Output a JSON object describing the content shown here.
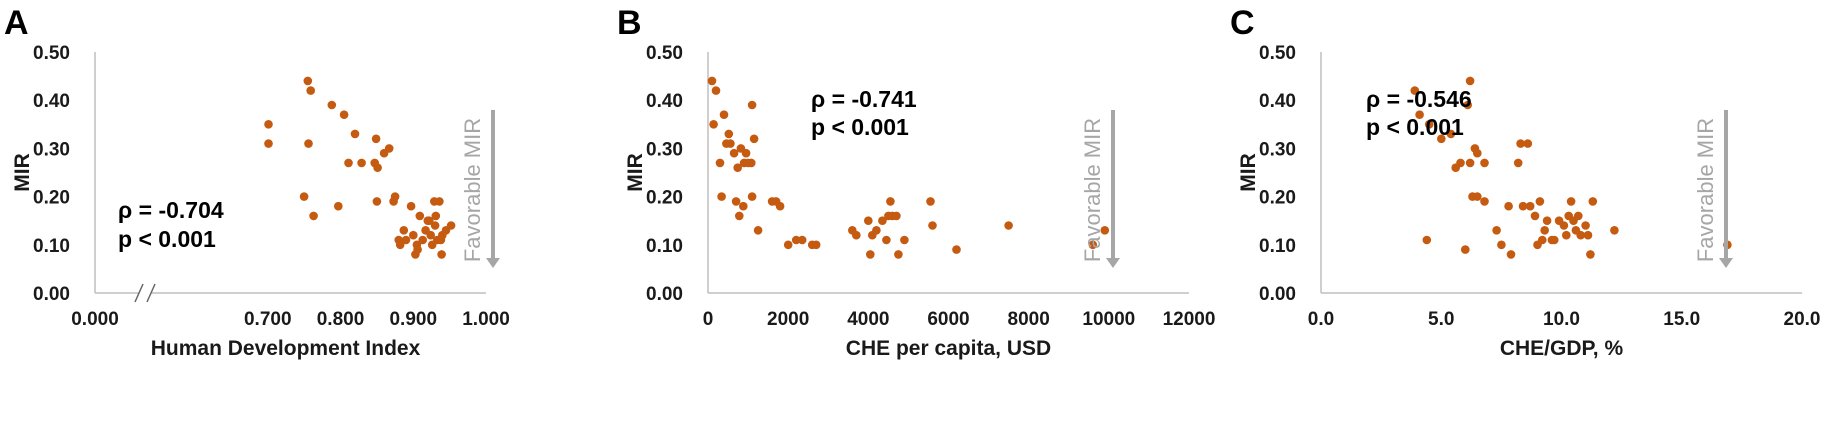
{
  "colors": {
    "point": "#c55a11",
    "axis": "#bfbfbf",
    "arrow": "#a6a6a6",
    "text": "#1a1a1a"
  },
  "chart_data": [
    {
      "type": "scatter",
      "panel_label": "A",
      "xlabel": "Human Development Index",
      "ylabel": "MIR",
      "xlim": [
        0.0,
        1.0
      ],
      "ylim": [
        0.0,
        0.5
      ],
      "axis_break": true,
      "break_after": 0.0,
      "break_start": 0.6,
      "x_ticks": [
        "0.000",
        "0.700",
        "0.800",
        "0.900",
        "1.000"
      ],
      "y_ticks": [
        "0.00",
        "0.10",
        "0.20",
        "0.30",
        "0.40",
        "0.50"
      ],
      "annotation": {
        "rho": "ρ = -0.704",
        "p": "p < 0.001"
      },
      "arrow_label": "Favorable MIR",
      "grid": false,
      "points": [
        [
          0.701,
          0.35
        ],
        [
          0.701,
          0.31
        ],
        [
          0.75,
          0.2
        ],
        [
          0.755,
          0.44
        ],
        [
          0.756,
          0.31
        ],
        [
          0.759,
          0.42
        ],
        [
          0.763,
          0.16
        ],
        [
          0.788,
          0.39
        ],
        [
          0.797,
          0.18
        ],
        [
          0.805,
          0.37
        ],
        [
          0.811,
          0.27
        ],
        [
          0.82,
          0.33
        ],
        [
          0.829,
          0.27
        ],
        [
          0.847,
          0.27
        ],
        [
          0.849,
          0.32
        ],
        [
          0.85,
          0.19
        ],
        [
          0.851,
          0.26
        ],
        [
          0.86,
          0.29
        ],
        [
          0.867,
          0.3
        ],
        [
          0.873,
          0.19
        ],
        [
          0.875,
          0.2
        ],
        [
          0.88,
          0.11
        ],
        [
          0.882,
          0.1
        ],
        [
          0.887,
          0.13
        ],
        [
          0.89,
          0.11
        ],
        [
          0.897,
          0.18
        ],
        [
          0.9,
          0.12
        ],
        [
          0.903,
          0.08
        ],
        [
          0.905,
          0.1
        ],
        [
          0.906,
          0.09
        ],
        [
          0.909,
          0.16
        ],
        [
          0.913,
          0.11
        ],
        [
          0.917,
          0.13
        ],
        [
          0.92,
          0.15
        ],
        [
          0.922,
          0.15
        ],
        [
          0.924,
          0.12
        ],
        [
          0.926,
          0.1
        ],
        [
          0.929,
          0.19
        ],
        [
          0.93,
          0.14
        ],
        [
          0.931,
          0.16
        ],
        [
          0.933,
          0.11
        ],
        [
          0.936,
          0.19
        ],
        [
          0.938,
          0.11
        ],
        [
          0.939,
          0.08
        ],
        [
          0.94,
          0.12
        ],
        [
          0.945,
          0.13
        ],
        [
          0.952,
          0.14
        ]
      ]
    },
    {
      "type": "scatter",
      "panel_label": "B",
      "xlabel": "CHE per capita, USD",
      "ylabel": "MIR",
      "xlim": [
        0,
        12000
      ],
      "ylim": [
        0.0,
        0.5
      ],
      "x_ticks": [
        "0",
        "2000",
        "4000",
        "6000",
        "8000",
        "10000",
        "12000"
      ],
      "y_ticks": [
        "0.00",
        "0.10",
        "0.20",
        "0.30",
        "0.40",
        "0.50"
      ],
      "annotation": {
        "rho": "ρ = -0.741",
        "p": "p < 0.001"
      },
      "arrow_label": "Favorable MIR",
      "grid": false,
      "points": [
        [
          100,
          0.44
        ],
        [
          140,
          0.35
        ],
        [
          200,
          0.42
        ],
        [
          300,
          0.27
        ],
        [
          340,
          0.2
        ],
        [
          400,
          0.37
        ],
        [
          460,
          0.31
        ],
        [
          520,
          0.33
        ],
        [
          560,
          0.31
        ],
        [
          650,
          0.29
        ],
        [
          700,
          0.19
        ],
        [
          740,
          0.26
        ],
        [
          780,
          0.16
        ],
        [
          820,
          0.3
        ],
        [
          880,
          0.18
        ],
        [
          900,
          0.27
        ],
        [
          950,
          0.29
        ],
        [
          1000,
          0.27
        ],
        [
          1080,
          0.27
        ],
        [
          1100,
          0.2
        ],
        [
          1100,
          0.39
        ],
        [
          1150,
          0.32
        ],
        [
          1250,
          0.13
        ],
        [
          1600,
          0.19
        ],
        [
          1700,
          0.19
        ],
        [
          1800,
          0.18
        ],
        [
          2000,
          0.1
        ],
        [
          2200,
          0.11
        ],
        [
          2350,
          0.11
        ],
        [
          2600,
          0.1
        ],
        [
          2700,
          0.1
        ],
        [
          3600,
          0.13
        ],
        [
          3700,
          0.12
        ],
        [
          4000,
          0.15
        ],
        [
          4050,
          0.08
        ],
        [
          4100,
          0.12
        ],
        [
          4200,
          0.13
        ],
        [
          4350,
          0.15
        ],
        [
          4450,
          0.11
        ],
        [
          4500,
          0.16
        ],
        [
          4550,
          0.19
        ],
        [
          4600,
          0.16
        ],
        [
          4700,
          0.16
        ],
        [
          4750,
          0.08
        ],
        [
          4900,
          0.11
        ],
        [
          5550,
          0.19
        ],
        [
          5600,
          0.14
        ],
        [
          6200,
          0.09
        ],
        [
          7500,
          0.14
        ],
        [
          9600,
          0.1
        ],
        [
          9900,
          0.13
        ]
      ]
    },
    {
      "type": "scatter",
      "panel_label": "C",
      "xlabel": "CHE/GDP, %",
      "ylabel": "MIR",
      "xlim": [
        0.0,
        20.0
      ],
      "ylim": [
        0.0,
        0.5
      ],
      "x_ticks": [
        "0.0",
        "5.0",
        "10.0",
        "15.0",
        "20.0"
      ],
      "y_ticks": [
        "0.00",
        "0.10",
        "0.20",
        "0.30",
        "0.40",
        "0.50"
      ],
      "annotation": {
        "rho": "ρ = -0.546",
        "p": "p < 0.001"
      },
      "arrow_label": "Favorable MIR",
      "grid": false,
      "points": [
        [
          3.9,
          0.42
        ],
        [
          4.1,
          0.37
        ],
        [
          4.4,
          0.11
        ],
        [
          4.5,
          0.35
        ],
        [
          5.0,
          0.32
        ],
        [
          5.4,
          0.33
        ],
        [
          5.6,
          0.26
        ],
        [
          5.8,
          0.27
        ],
        [
          6.0,
          0.09
        ],
        [
          6.1,
          0.39
        ],
        [
          6.2,
          0.44
        ],
        [
          6.2,
          0.27
        ],
        [
          6.3,
          0.2
        ],
        [
          6.4,
          0.3
        ],
        [
          6.5,
          0.2
        ],
        [
          6.5,
          0.29
        ],
        [
          6.8,
          0.27
        ],
        [
          6.8,
          0.19
        ],
        [
          7.3,
          0.13
        ],
        [
          7.5,
          0.1
        ],
        [
          7.8,
          0.18
        ],
        [
          7.9,
          0.08
        ],
        [
          8.2,
          0.27
        ],
        [
          8.3,
          0.31
        ],
        [
          8.4,
          0.18
        ],
        [
          8.6,
          0.31
        ],
        [
          8.7,
          0.18
        ],
        [
          8.9,
          0.16
        ],
        [
          9.0,
          0.1
        ],
        [
          9.1,
          0.19
        ],
        [
          9.2,
          0.11
        ],
        [
          9.3,
          0.13
        ],
        [
          9.4,
          0.15
        ],
        [
          9.6,
          0.11
        ],
        [
          9.7,
          0.11
        ],
        [
          9.9,
          0.15
        ],
        [
          10.1,
          0.14
        ],
        [
          10.2,
          0.12
        ],
        [
          10.3,
          0.16
        ],
        [
          10.4,
          0.19
        ],
        [
          10.5,
          0.15
        ],
        [
          10.6,
          0.13
        ],
        [
          10.7,
          0.16
        ],
        [
          10.8,
          0.12
        ],
        [
          11.0,
          0.14
        ],
        [
          11.1,
          0.12
        ],
        [
          11.2,
          0.08
        ],
        [
          11.3,
          0.19
        ],
        [
          12.2,
          0.13
        ],
        [
          16.9,
          0.1
        ]
      ]
    }
  ]
}
